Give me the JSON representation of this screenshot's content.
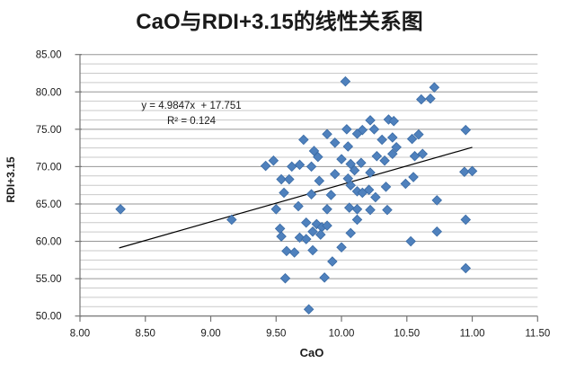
{
  "chart_data": {
    "type": "scatter",
    "title": "CaO与RDI+3.15的线性关系图",
    "xlabel": "CaO",
    "ylabel": "RDI+3.15",
    "xlim": [
      8.0,
      11.5
    ],
    "ylim": [
      50.0,
      85.0
    ],
    "x_tick_labels": [
      "8.00",
      "8.50",
      "9.00",
      "9.50",
      "10.00",
      "10.50",
      "11.00",
      "11.50"
    ],
    "x_tick_values": [
      8.0,
      8.5,
      9.0,
      9.5,
      10.0,
      10.5,
      11.0,
      11.5
    ],
    "y_tick_labels": [
      "50.00",
      "55.00",
      "60.00",
      "65.00",
      "70.00",
      "75.00",
      "80.00",
      "85.00"
    ],
    "y_tick_values": [
      50,
      55,
      60,
      65,
      70,
      75,
      80,
      85
    ],
    "y_minor_step": 1.25,
    "grid": "horizontal",
    "legend": "none",
    "annotation": {
      "equation": "y = 4.9847x  + 17.751",
      "r_squared": "R² = 0.124"
    },
    "trendline": {
      "x1": 8.3,
      "y1": 59.12,
      "x2": 11.0,
      "y2": 72.58,
      "color": "#000000"
    },
    "marker": {
      "shape": "diamond",
      "color": "#4F81BD",
      "edge": "#3A6BA5"
    },
    "gridline_minor_color": "#C9C9C9",
    "gridline_major_color": "#969696",
    "axis_color": "#757575",
    "text_color": "#1a1a1a",
    "series": [
      {
        "name": "RDI+3.15",
        "points": [
          [
            10.03,
            81.4
          ],
          [
            10.71,
            80.6
          ],
          [
            10.61,
            79.0
          ],
          [
            10.68,
            79.1
          ],
          [
            10.22,
            76.2
          ],
          [
            10.36,
            76.3
          ],
          [
            10.4,
            76.1
          ],
          [
            10.04,
            75.0
          ],
          [
            10.25,
            75.0
          ],
          [
            10.16,
            74.9
          ],
          [
            10.95,
            74.9
          ],
          [
            10.12,
            74.4
          ],
          [
            9.89,
            74.35
          ],
          [
            10.59,
            74.3
          ],
          [
            9.71,
            73.6
          ],
          [
            10.54,
            73.7
          ],
          [
            10.31,
            73.6
          ],
          [
            10.39,
            73.9
          ],
          [
            9.95,
            73.2
          ],
          [
            10.05,
            72.7
          ],
          [
            10.42,
            72.6
          ],
          [
            9.79,
            72.1
          ],
          [
            9.82,
            71.3
          ],
          [
            10.0,
            71.0
          ],
          [
            10.56,
            71.4
          ],
          [
            10.62,
            71.7
          ],
          [
            10.39,
            71.7
          ],
          [
            10.27,
            71.4
          ],
          [
            10.15,
            70.5
          ],
          [
            10.33,
            70.8
          ],
          [
            10.07,
            70.35
          ],
          [
            10.1,
            69.5
          ],
          [
            9.48,
            70.8
          ],
          [
            9.42,
            70.1
          ],
          [
            9.62,
            70.0
          ],
          [
            9.68,
            70.25
          ],
          [
            9.77,
            70.0
          ],
          [
            10.94,
            69.3
          ],
          [
            11.0,
            69.4
          ],
          [
            9.54,
            68.3
          ],
          [
            9.6,
            68.3
          ],
          [
            9.95,
            69.0
          ],
          [
            10.05,
            68.4
          ],
          [
            9.83,
            68.1
          ],
          [
            10.22,
            69.2
          ],
          [
            10.49,
            67.7
          ],
          [
            10.55,
            68.6
          ],
          [
            10.07,
            67.5
          ],
          [
            10.34,
            67.3
          ],
          [
            9.56,
            66.5
          ],
          [
            9.77,
            66.3
          ],
          [
            9.92,
            66.2
          ],
          [
            10.12,
            66.7
          ],
          [
            10.16,
            66.5
          ],
          [
            10.21,
            66.9
          ],
          [
            10.26,
            65.9
          ],
          [
            10.73,
            65.5
          ],
          [
            8.31,
            64.3
          ],
          [
            9.5,
            64.3
          ],
          [
            9.67,
            64.7
          ],
          [
            9.89,
            64.3
          ],
          [
            10.06,
            64.5
          ],
          [
            10.12,
            64.3
          ],
          [
            10.22,
            64.2
          ],
          [
            10.35,
            64.2
          ],
          [
            10.12,
            62.9
          ],
          [
            10.95,
            62.9
          ],
          [
            9.16,
            62.9
          ],
          [
            9.73,
            62.5
          ],
          [
            9.81,
            62.3
          ],
          [
            9.85,
            61.9
          ],
          [
            9.89,
            62.1
          ],
          [
            9.53,
            61.7
          ],
          [
            9.78,
            61.3
          ],
          [
            9.84,
            60.9
          ],
          [
            10.07,
            61.1
          ],
          [
            10.73,
            61.3
          ],
          [
            9.54,
            60.65
          ],
          [
            9.68,
            60.5
          ],
          [
            9.73,
            60.3
          ],
          [
            10.53,
            60.0
          ],
          [
            9.58,
            58.7
          ],
          [
            9.64,
            58.5
          ],
          [
            9.78,
            58.8
          ],
          [
            10.0,
            59.2
          ],
          [
            9.93,
            57.3
          ],
          [
            10.95,
            56.4
          ],
          [
            9.57,
            55.05
          ],
          [
            9.87,
            55.15
          ],
          [
            9.75,
            50.9
          ]
        ]
      }
    ]
  }
}
